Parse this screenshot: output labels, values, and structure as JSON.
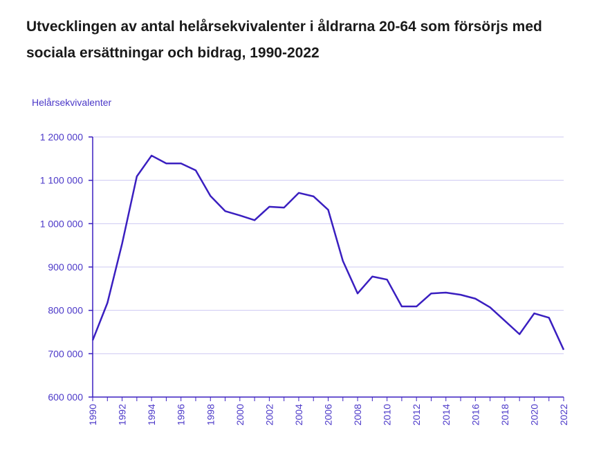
{
  "chart_data": {
    "type": "line",
    "title": "Utvecklingen av antal helårsekvivalenter i åldrarna 20-64 som försörjs med sociala ersättningar och bidrag, 1990-2022",
    "xlabel": "",
    "ylabel": "Helårsekvivalenter",
    "ylim": [
      600000,
      1200000
    ],
    "yticks": [
      600000,
      700000,
      800000,
      900000,
      1000000,
      1100000,
      1200000
    ],
    "ytick_labels": [
      "600 000",
      "700 000",
      "800 000",
      "900 000",
      "1 000 000",
      "1 100 000",
      "1 200 000"
    ],
    "xtick_labels": [
      "1990",
      "1992",
      "1994",
      "1996",
      "1998",
      "2000",
      "2002",
      "2004",
      "2006",
      "2008",
      "2010",
      "2012",
      "2014",
      "2016",
      "2018",
      "2020",
      "2022"
    ],
    "grid": true,
    "line_color": "#3a1fc0",
    "x": [
      1990,
      1991,
      1992,
      1993,
      1994,
      1995,
      1996,
      1997,
      1998,
      1999,
      2000,
      2001,
      2002,
      2003,
      2004,
      2005,
      2006,
      2007,
      2008,
      2009,
      2010,
      2011,
      2012,
      2013,
      2014,
      2015,
      2016,
      2017,
      2018,
      2019,
      2020,
      2021,
      2022
    ],
    "series": [
      {
        "name": "Helårsekvivalenter",
        "values": [
          731000,
          817000,
          954000,
          1109000,
          1157000,
          1139000,
          1139000,
          1123000,
          1064000,
          1029000,
          1019000,
          1008000,
          1039000,
          1037000,
          1071000,
          1063000,
          1032000,
          914000,
          839000,
          878000,
          871000,
          809000,
          809000,
          839000,
          841000,
          836000,
          827000,
          807000,
          776000,
          745000,
          793000,
          783000,
          709000
        ]
      }
    ]
  }
}
